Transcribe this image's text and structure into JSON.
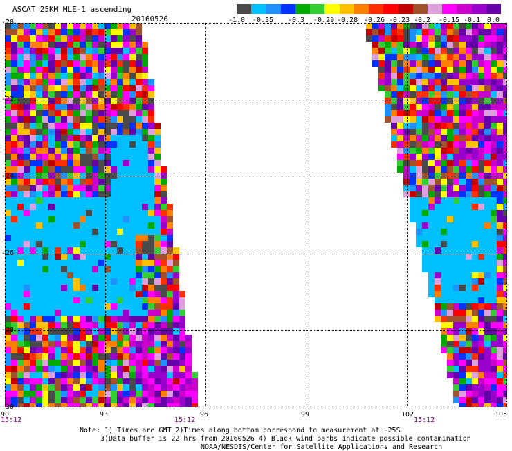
{
  "header": {
    "title": "ASCAT 25KM MLE-1 ascending",
    "date": "20160526"
  },
  "colorbar": {
    "colors": [
      "#4a4a4a",
      "#00bfff",
      "#1e90ff",
      "#0033ff",
      "#00aa00",
      "#32cd32",
      "#ffff00",
      "#ffc000",
      "#ff8000",
      "#ff3000",
      "#ff0000",
      "#c00000",
      "#a0522d",
      "#dda0dd",
      "#ff00ff",
      "#cc00cc",
      "#9900cc",
      "#6600aa"
    ],
    "ticks": [
      "-1.0",
      "-0.35",
      "-0.3",
      "-0.29",
      "-0.28",
      "-0.26",
      "-0.23",
      "-0.2",
      "-0.15",
      "-0.1",
      "0.0"
    ]
  },
  "map": {
    "lon_ticks": [
      "90",
      "93",
      "96",
      "99",
      "102",
      "105"
    ],
    "lat_ticks": [
      "-20",
      "-22",
      "-24",
      "-26",
      "-28",
      "-30"
    ],
    "lon_range": [
      90,
      105
    ],
    "lat_range": [
      -30,
      -20
    ],
    "pass_times": [
      "15:12",
      "15:12",
      "15:12"
    ]
  },
  "notes": {
    "line1": "Note: 1) Times are GMT 2)Times along bottom correspond to measurement at ~25S",
    "line2": "3)Data buffer is 22 hrs from 20160526 4) Black wind barbs indicate possible contamination",
    "line3": "NOAA/NESDIS/Center for Satellite Applications and Research"
  }
}
